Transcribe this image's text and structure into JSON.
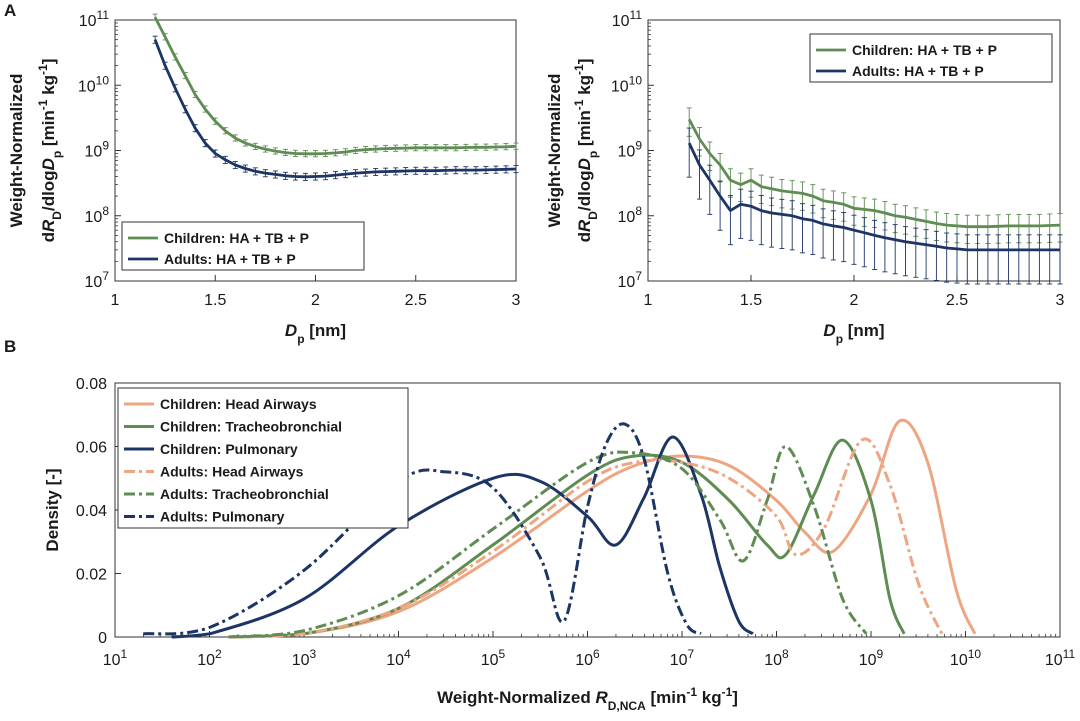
{
  "panel_labels": {
    "a": "A",
    "b": "B"
  },
  "colors": {
    "green": "#5e8c52",
    "navy": "#1c3565",
    "peach": "#eea582",
    "axis": "#333333"
  },
  "chart_data": [
    {
      "id": "A-left",
      "type": "line",
      "xlabel_main": "D",
      "xlabel_sub": "p",
      "xlabel_unit": " [nm]",
      "ylabel_line1": "Weight-Normalized",
      "ylabel_line2": {
        "d1": "d",
        "R": "R",
        "sub_D": "D",
        "mid": "/dlog",
        "Dp": "D",
        "sub_p": "p",
        "unit_a": " [min",
        "exp1": "-1",
        "unit_b": " kg",
        "exp2": "-1",
        "unit_c": "]"
      },
      "xlim": [
        1,
        3
      ],
      "ylim_log10": [
        7,
        11
      ],
      "yscale": "log",
      "xticks": [
        "1",
        "1.5",
        "2",
        "2.5",
        "3"
      ],
      "yticks": [
        {
          "base": "10",
          "exp": "7"
        },
        {
          "base": "10",
          "exp": "8"
        },
        {
          "base": "10",
          "exp": "9"
        },
        {
          "base": "10",
          "exp": "10"
        },
        {
          "base": "10",
          "exp": "11"
        }
      ],
      "legend_position": "bottom-left",
      "series": [
        {
          "name": "Children: HA + TB + P",
          "color": "#5e8c52",
          "err_lo": 0.9,
          "err_hi": 1.12,
          "x": [
            1.2,
            1.25,
            1.3,
            1.35,
            1.4,
            1.45,
            1.5,
            1.55,
            1.6,
            1.65,
            1.7,
            1.75,
            1.8,
            1.85,
            1.9,
            1.95,
            2.0,
            2.05,
            2.1,
            2.15,
            2.2,
            2.25,
            2.3,
            2.35,
            2.4,
            2.45,
            2.5,
            2.55,
            2.6,
            2.65,
            2.7,
            2.75,
            2.8,
            2.85,
            2.9,
            2.95,
            3.0
          ],
          "y": [
            110000000000.0,
            55000000000.0,
            27000000000.0,
            14000000000.0,
            7200000000.0,
            4300000000.0,
            2800000000.0,
            2000000000.0,
            1550000000.0,
            1300000000.0,
            1150000000.0,
            1050000000.0,
            980000000.0,
            930000000.0,
            900000000.0,
            890000000.0,
            890000000.0,
            900000000.0,
            920000000.0,
            950000000.0,
            1000000000.0,
            1030000000.0,
            1050000000.0,
            1070000000.0,
            1080000000.0,
            1090000000.0,
            1100000000.0,
            1100000000.0,
            1100000000.0,
            1100000000.0,
            1100000000.0,
            1110000000.0,
            1120000000.0,
            1120000000.0,
            1130000000.0,
            1140000000.0,
            1160000000.0
          ]
        },
        {
          "name": "Adults: HA + TB + P",
          "color": "#1c3565",
          "err_lo": 0.88,
          "err_hi": 1.13,
          "x": [
            1.2,
            1.25,
            1.3,
            1.35,
            1.4,
            1.45,
            1.5,
            1.55,
            1.6,
            1.65,
            1.7,
            1.75,
            1.8,
            1.85,
            1.9,
            1.95,
            2.0,
            2.05,
            2.1,
            2.15,
            2.2,
            2.25,
            2.3,
            2.35,
            2.4,
            2.45,
            2.5,
            2.55,
            2.6,
            2.65,
            2.7,
            2.75,
            2.8,
            2.85,
            2.9,
            2.95,
            3.0
          ],
          "y": [
            50000000000.0,
            20000000000.0,
            9000000000.0,
            4300000000.0,
            2200000000.0,
            1300000000.0,
            900000000.0,
            720000000.0,
            600000000.0,
            530000000.0,
            480000000.0,
            450000000.0,
            430000000.0,
            410000000.0,
            400000000.0,
            395000000.0,
            400000000.0,
            405000000.0,
            420000000.0,
            435000000.0,
            450000000.0,
            460000000.0,
            470000000.0,
            475000000.0,
            480000000.0,
            485000000.0,
            490000000.0,
            490000000.0,
            490000000.0,
            495000000.0,
            500000000.0,
            500000000.0,
            500000000.0,
            505000000.0,
            510000000.0,
            515000000.0,
            520000000.0
          ]
        }
      ]
    },
    {
      "id": "A-right",
      "type": "line",
      "xlabel_main": "D",
      "xlabel_sub": "p",
      "xlabel_unit": " [nm]",
      "ylabel_line1": "Weight-Normalized",
      "ylabel_line2": {
        "d1": "d",
        "R": "R",
        "sub_D": "D",
        "mid": "/dlog",
        "Dp": "D",
        "sub_p": "p",
        "unit_a": " [min",
        "exp1": "-1",
        "unit_b": " kg",
        "exp2": "-1",
        "unit_c": "]"
      },
      "xlim": [
        1,
        3
      ],
      "ylim_log10": [
        7,
        11
      ],
      "yscale": "log",
      "xticks": [
        "1",
        "1.5",
        "2",
        "2.5",
        "3"
      ],
      "yticks": [
        {
          "base": "10",
          "exp": "7"
        },
        {
          "base": "10",
          "exp": "8"
        },
        {
          "base": "10",
          "exp": "9"
        },
        {
          "base": "10",
          "exp": "10"
        },
        {
          "base": "10",
          "exp": "11"
        }
      ],
      "legend_position": "top-right",
      "series": [
        {
          "name": "Children: HA + TB + P",
          "color": "#5e8c52",
          "err_lo": 0.55,
          "err_hi": 1.5,
          "x": [
            1.2,
            1.25,
            1.3,
            1.35,
            1.4,
            1.45,
            1.5,
            1.55,
            1.6,
            1.65,
            1.7,
            1.75,
            1.8,
            1.85,
            1.9,
            1.95,
            2.0,
            2.05,
            2.1,
            2.15,
            2.2,
            2.25,
            2.3,
            2.35,
            2.4,
            2.45,
            2.5,
            2.55,
            2.6,
            2.65,
            2.7,
            2.75,
            2.8,
            2.85,
            2.9,
            2.95,
            3.0
          ],
          "y": [
            3000000000.0,
            1500000000.0,
            900000000.0,
            600000000.0,
            350000000.0,
            300000000.0,
            350000000.0,
            280000000.0,
            260000000.0,
            240000000.0,
            230000000.0,
            220000000.0,
            200000000.0,
            170000000.0,
            160000000.0,
            150000000.0,
            130000000.0,
            125000000.0,
            120000000.0,
            110000000.0,
            100000000.0,
            95000000.0,
            88000000.0,
            82000000.0,
            76000000.0,
            72000000.0,
            70000000.0,
            68000000.0,
            68000000.0,
            68000000.0,
            69000000.0,
            70000000.0,
            70000000.0,
            70000000.0,
            70000000.0,
            71000000.0,
            72000000.0
          ]
        },
        {
          "name": "Adults: HA + TB + P",
          "color": "#1c3565",
          "err_lo": 0.3,
          "err_hi": 1.7,
          "x": [
            1.2,
            1.25,
            1.3,
            1.35,
            1.4,
            1.45,
            1.5,
            1.55,
            1.6,
            1.65,
            1.7,
            1.75,
            1.8,
            1.85,
            1.9,
            1.95,
            2.0,
            2.05,
            2.1,
            2.15,
            2.2,
            2.25,
            2.3,
            2.35,
            2.4,
            2.45,
            2.5,
            2.55,
            2.6,
            2.65,
            2.7,
            2.75,
            2.8,
            2.85,
            2.9,
            2.95,
            3.0
          ],
          "y": [
            1300000000.0,
            600000000.0,
            350000000.0,
            200000000.0,
            120000000.0,
            150000000.0,
            140000000.0,
            120000000.0,
            110000000.0,
            105000000.0,
            100000000.0,
            90000000.0,
            85000000.0,
            75000000.0,
            70000000.0,
            66000000.0,
            60000000.0,
            55000000.0,
            50000000.0,
            46000000.0,
            43000000.0,
            40000000.0,
            38000000.0,
            36000000.0,
            34000000.0,
            32000000.0,
            31000000.0,
            30000000.0,
            30000000.0,
            30000000.0,
            30000000.0,
            30000000.0,
            30000000.0,
            30000000.0,
            30000000.0,
            30000000.0,
            30000000.0
          ]
        }
      ]
    },
    {
      "id": "B",
      "type": "line",
      "ylabel": "Density [-]",
      "xlabel_main": "Weight-Normalized ",
      "xlabel_R": "R",
      "xlabel_sub": "D,NCA",
      "xlabel_unit_a": " [min",
      "xlabel_exp1": "-1",
      "xlabel_unit_b": " kg",
      "xlabel_exp2": "-1",
      "xlabel_unit_c": "]",
      "xscale": "log",
      "xlim_log10": [
        1,
        11
      ],
      "ylim": [
        0,
        0.08
      ],
      "yticks": [
        "0",
        "0.02",
        "0.04",
        "0.06",
        "0.08"
      ],
      "xticks": [
        {
          "base": "10",
          "exp": "1"
        },
        {
          "base": "10",
          "exp": "2"
        },
        {
          "base": "10",
          "exp": "3"
        },
        {
          "base": "10",
          "exp": "4"
        },
        {
          "base": "10",
          "exp": "5"
        },
        {
          "base": "10",
          "exp": "6"
        },
        {
          "base": "10",
          "exp": "7"
        },
        {
          "base": "10",
          "exp": "8"
        },
        {
          "base": "10",
          "exp": "9"
        },
        {
          "base": "10",
          "exp": "10"
        },
        {
          "base": "10",
          "exp": "11"
        }
      ],
      "legend_position": "top-left",
      "series": [
        {
          "name": "Children: Head Airways",
          "color": "#eea582",
          "dash": "solid",
          "log10x": [
            2.2,
            3,
            4,
            5,
            6,
            6.5,
            7,
            7.5,
            8,
            8.3,
            8.6,
            9,
            9.3,
            9.6,
            9.9,
            10.1
          ],
          "y": [
            0,
            0.001,
            0.008,
            0.025,
            0.046,
            0.054,
            0.057,
            0.054,
            0.043,
            0.033,
            0.027,
            0.045,
            0.068,
            0.055,
            0.015,
            0.001
          ]
        },
        {
          "name": "Children: Tracheobronchial",
          "color": "#5e8c52",
          "dash": "solid",
          "log10x": [
            2.2,
            3,
            4,
            5,
            6,
            6.5,
            7,
            7.5,
            7.9,
            8.1,
            8.4,
            8.7,
            9,
            9.2,
            9.35
          ],
          "y": [
            0,
            0.001,
            0.009,
            0.029,
            0.051,
            0.057,
            0.055,
            0.043,
            0.029,
            0.026,
            0.045,
            0.062,
            0.043,
            0.012,
            0.001
          ]
        },
        {
          "name": "Children: Pulmonary",
          "color": "#1c3565",
          "dash": "solid",
          "log10x": [
            1.6,
            2,
            3,
            4,
            5,
            5.5,
            6,
            6.3,
            6.6,
            6.9,
            7.2,
            7.4,
            7.6,
            7.75
          ],
          "y": [
            0,
            0.001,
            0.012,
            0.035,
            0.05,
            0.049,
            0.038,
            0.029,
            0.044,
            0.063,
            0.045,
            0.022,
            0.005,
            0.001
          ]
        },
        {
          "name": "Adults: Head Airways",
          "color": "#eea582",
          "dash": "dash",
          "log10x": [
            2.2,
            3,
            4,
            5,
            6,
            6.5,
            7,
            7.5,
            8,
            8.2,
            8.5,
            8.9,
            9.2,
            9.5,
            9.75
          ],
          "y": [
            0,
            0.001,
            0.009,
            0.027,
            0.049,
            0.055,
            0.055,
            0.05,
            0.038,
            0.026,
            0.034,
            0.062,
            0.048,
            0.017,
            0.001
          ]
        },
        {
          "name": "Adults: Tracheobronchial",
          "color": "#5e8c52",
          "dash": "dash",
          "log10x": [
            2.2,
            3,
            4,
            5,
            6,
            6.5,
            7,
            7.4,
            7.65,
            7.9,
            8.1,
            8.4,
            8.7,
            8.95
          ],
          "y": [
            0,
            0.002,
            0.013,
            0.034,
            0.055,
            0.058,
            0.053,
            0.037,
            0.024,
            0.043,
            0.06,
            0.041,
            0.012,
            0.001
          ]
        },
        {
          "name": "Adults: Pulmonary",
          "color": "#1c3565",
          "dash": "dash",
          "log10x": [
            1.3,
            2,
            3,
            4,
            4.5,
            5,
            5.5,
            5.75,
            6,
            6.2,
            6.4,
            6.6,
            6.85,
            7.05,
            7.2
          ],
          "y": [
            0.001,
            0.003,
            0.021,
            0.049,
            0.052,
            0.047,
            0.025,
            0.005,
            0.041,
            0.061,
            0.067,
            0.056,
            0.02,
            0.004,
            0.001
          ]
        }
      ]
    }
  ]
}
